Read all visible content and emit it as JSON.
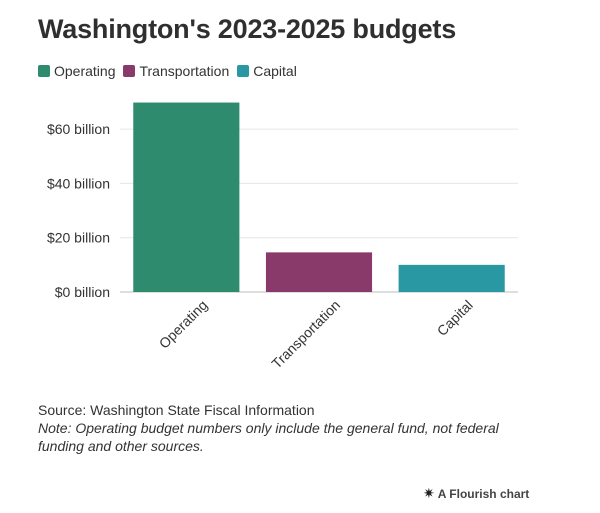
{
  "title": "Washington's 2023-2025 budgets",
  "legend": [
    {
      "label": "Operating",
      "color": "#2e8b6d"
    },
    {
      "label": "Transportation",
      "color": "#8a3a6a"
    },
    {
      "label": "Capital",
      "color": "#2a98a3"
    }
  ],
  "chart_data": {
    "type": "bar",
    "categories": [
      "Operating",
      "Transportation",
      "Capital"
    ],
    "values": [
      69.8,
      14.6,
      10.0
    ],
    "colors": [
      "#2e8b6d",
      "#8a3a6a",
      "#2a98a3"
    ],
    "ylim": [
      0,
      70
    ],
    "yticks": [
      {
        "value": 0,
        "label": "$0 billion"
      },
      {
        "value": 20,
        "label": "$20 billion"
      },
      {
        "value": 40,
        "label": "$40 billion"
      },
      {
        "value": 60,
        "label": "$60 billion"
      }
    ],
    "title": "Washington's 2023-2025 budgets",
    "xlabel": "",
    "ylabel": ""
  },
  "footer": {
    "source": "Source: Washington State Fiscal Information",
    "note": "Note: Operating budget numbers only include the general fund, not federal funding and other sources.",
    "credit": "A Flourish chart",
    "credit_icon": "flourish-star-icon"
  }
}
